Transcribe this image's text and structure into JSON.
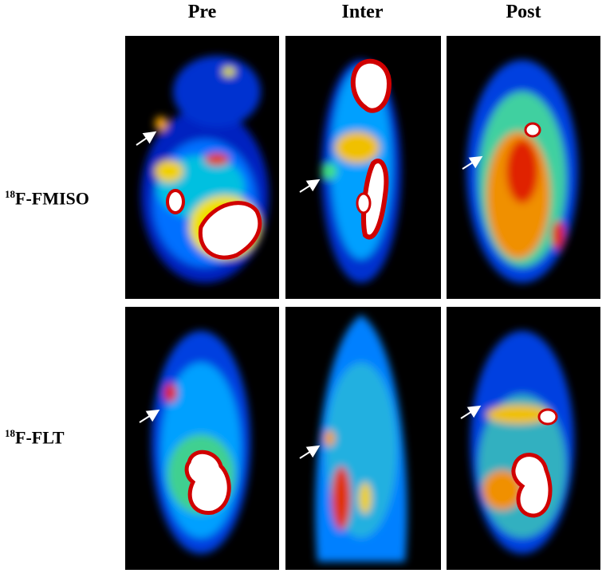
{
  "columns": [
    "Pre",
    "Inter",
    "Post"
  ],
  "rows": [
    {
      "superscript": "18",
      "text": "F-FMISO"
    },
    {
      "superscript": "18",
      "text": "F-FLT"
    }
  ]
}
